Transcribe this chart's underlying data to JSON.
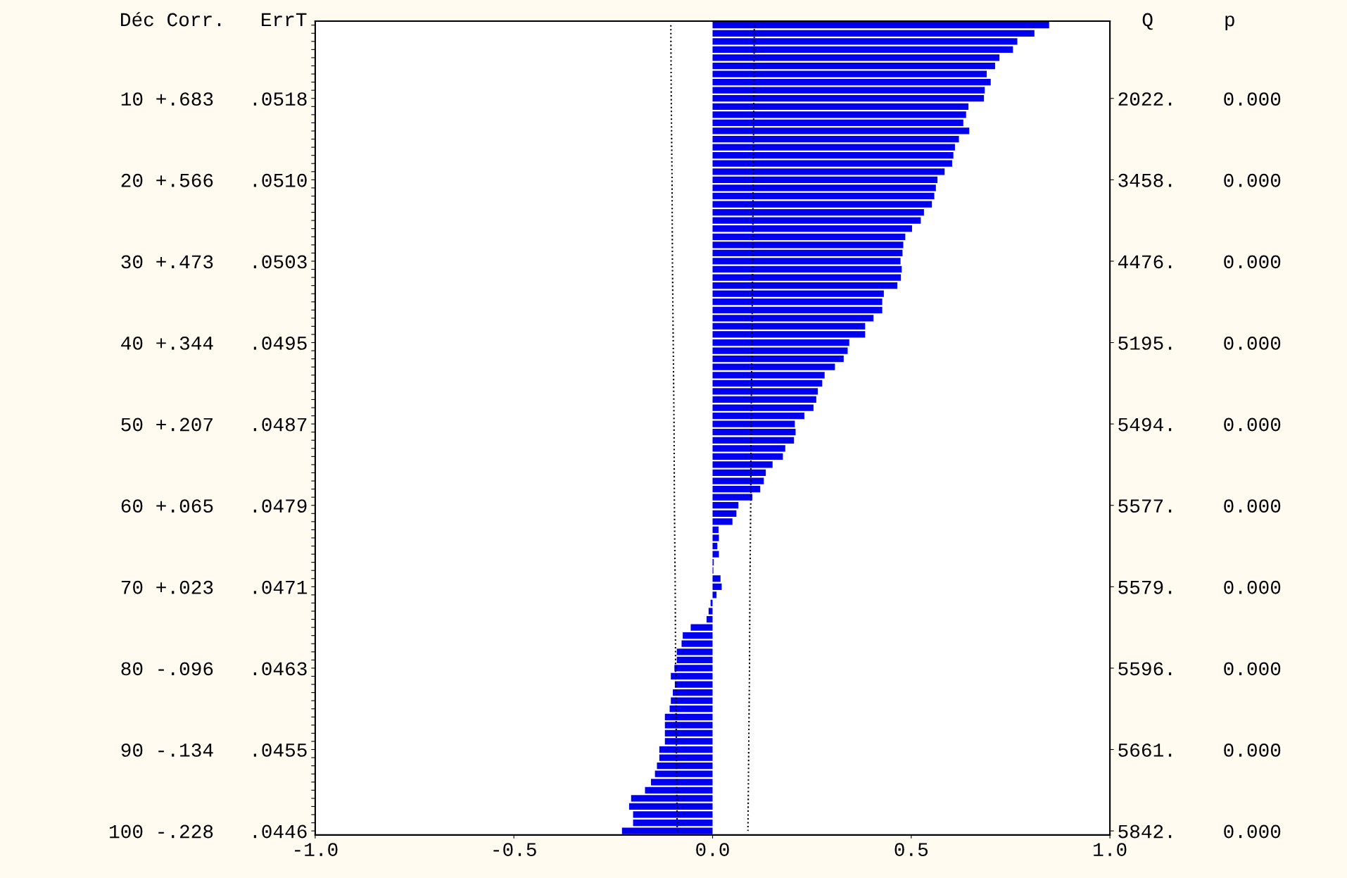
{
  "chart_data": {
    "type": "bar",
    "orientation": "horizontal",
    "ylabel": "Déc Corr.   ErrT",
    "y2label": "Q      p",
    "categories": [
      null,
      null,
      null,
      null,
      null,
      null,
      null,
      null,
      null,
      "10 +.683   .0518",
      null,
      null,
      null,
      null,
      null,
      null,
      null,
      null,
      null,
      "20 +.566   .0510",
      null,
      null,
      null,
      null,
      null,
      null,
      null,
      null,
      null,
      "30 +.473   .0503",
      null,
      null,
      null,
      null,
      null,
      null,
      null,
      null,
      null,
      "40 +.344   .0495",
      null,
      null,
      null,
      null,
      null,
      null,
      null,
      null,
      null,
      "50 +.207   .0487",
      null,
      null,
      null,
      null,
      null,
      null,
      null,
      null,
      null,
      "60 +.065   .0479",
      null,
      null,
      null,
      null,
      null,
      null,
      null,
      null,
      null,
      "70 +.023   .0471",
      null,
      null,
      null,
      null,
      null,
      null,
      null,
      null,
      null,
      "80 -.096   .0463",
      null,
      null,
      null,
      null,
      null,
      null,
      null,
      null,
      null,
      "90 -.134   .0455",
      null,
      null,
      null,
      null,
      null,
      null,
      null,
      null,
      null,
      "100 -.228   .0446"
    ],
    "y2_categories": [
      null,
      null,
      null,
      null,
      null,
      null,
      null,
      null,
      null,
      "2022.    0.000",
      null,
      null,
      null,
      null,
      null,
      null,
      null,
      null,
      null,
      "3458.    0.000",
      null,
      null,
      null,
      null,
      null,
      null,
      null,
      null,
      null,
      "4476.    0.000",
      null,
      null,
      null,
      null,
      null,
      null,
      null,
      null,
      null,
      "5195.    0.000",
      null,
      null,
      null,
      null,
      null,
      null,
      null,
      null,
      null,
      "5494.    0.000",
      null,
      null,
      null,
      null,
      null,
      null,
      null,
      null,
      null,
      "5577.    0.000",
      null,
      null,
      null,
      null,
      null,
      null,
      null,
      null,
      null,
      "5579.    0.000",
      null,
      null,
      null,
      null,
      null,
      null,
      null,
      null,
      null,
      "5596.    0.000",
      null,
      null,
      null,
      null,
      null,
      null,
      null,
      null,
      null,
      "5661.    0.000",
      null,
      null,
      null,
      null,
      null,
      null,
      null,
      null,
      null,
      "5842.    0.000"
    ],
    "series": [
      {
        "color": "#0000ee",
        "values": [
          0.847,
          0.81,
          0.767,
          0.756,
          0.722,
          0.711,
          0.69,
          0.7,
          0.685,
          0.683,
          0.644,
          0.638,
          0.631,
          0.646,
          0.62,
          0.61,
          0.606,
          0.603,
          0.584,
          0.566,
          0.562,
          0.558,
          0.552,
          0.532,
          0.524,
          0.502,
          0.485,
          0.48,
          0.478,
          0.473,
          0.476,
          0.474,
          0.465,
          0.431,
          0.427,
          0.427,
          0.405,
          0.384,
          0.384,
          0.344,
          0.34,
          0.33,
          0.308,
          0.282,
          0.276,
          0.265,
          0.261,
          0.254,
          0.231,
          0.207,
          0.209,
          0.205,
          0.183,
          0.177,
          0.151,
          0.134,
          0.129,
          0.12,
          0.1,
          0.065,
          0.06,
          0.05,
          0.015,
          0.016,
          0.012,
          0.016,
          0.003,
          0.002,
          0.02,
          0.023,
          0.01,
          -0.005,
          -0.01,
          -0.015,
          -0.055,
          -0.075,
          -0.078,
          -0.09,
          -0.09,
          -0.096,
          -0.105,
          -0.095,
          -0.1,
          -0.105,
          -0.108,
          -0.12,
          -0.12,
          -0.12,
          -0.12,
          -0.134,
          -0.134,
          -0.14,
          -0.145,
          -0.155,
          -0.17,
          -0.205,
          -0.21,
          -0.2,
          -0.2,
          -0.228
        ]
      },
      {
        "type": "line",
        "color": "#000000",
        "line_style": "dotted",
        "values": [
          0.105,
          null,
          null,
          null,
          null,
          null,
          null,
          null,
          null,
          0.104,
          null,
          null,
          null,
          null,
          null,
          null,
          null,
          null,
          null,
          0.102,
          null,
          null,
          null,
          null,
          null,
          null,
          null,
          null,
          null,
          0.101,
          null,
          null,
          null,
          null,
          null,
          null,
          null,
          null,
          null,
          0.099,
          null,
          null,
          null,
          null,
          null,
          null,
          null,
          null,
          null,
          0.097,
          null,
          null,
          null,
          null,
          null,
          null,
          null,
          null,
          null,
          0.096,
          null,
          null,
          null,
          null,
          null,
          null,
          null,
          null,
          null,
          0.094,
          null,
          null,
          null,
          null,
          null,
          null,
          null,
          null,
          null,
          0.093,
          null,
          null,
          null,
          null,
          null,
          null,
          null,
          null,
          null,
          0.091,
          null,
          null,
          null,
          null,
          null,
          null,
          null,
          null,
          null,
          0.089
        ]
      },
      {
        "type": "line",
        "color": "#000000",
        "line_style": "dotted",
        "values": [
          -0.105,
          null,
          null,
          null,
          null,
          null,
          null,
          null,
          null,
          -0.104,
          null,
          null,
          null,
          null,
          null,
          null,
          null,
          null,
          null,
          -0.102,
          null,
          null,
          null,
          null,
          null,
          null,
          null,
          null,
          null,
          -0.101,
          null,
          null,
          null,
          null,
          null,
          null,
          null,
          null,
          null,
          -0.099,
          null,
          null,
          null,
          null,
          null,
          null,
          null,
          null,
          null,
          -0.097,
          null,
          null,
          null,
          null,
          null,
          null,
          null,
          null,
          null,
          -0.096,
          null,
          null,
          null,
          null,
          null,
          null,
          null,
          null,
          null,
          -0.094,
          null,
          null,
          null,
          null,
          null,
          null,
          null,
          null,
          null,
          -0.093,
          null,
          null,
          null,
          null,
          null,
          null,
          null,
          null,
          null,
          -0.091,
          null,
          null,
          null,
          null,
          null,
          null,
          null,
          null,
          null,
          -0.089
        ]
      }
    ],
    "xlim": [
      -1.0,
      1.0
    ],
    "xticks": [
      {
        "value": -1.0,
        "label": "-1.0"
      },
      {
        "value": -0.5,
        "label": "-0.5"
      },
      {
        "value": 0.0,
        "label": "0.0"
      },
      {
        "value": 0.5,
        "label": "0.5"
      },
      {
        "value": 1.0,
        "label": "1.0"
      }
    ],
    "grid": false
  }
}
